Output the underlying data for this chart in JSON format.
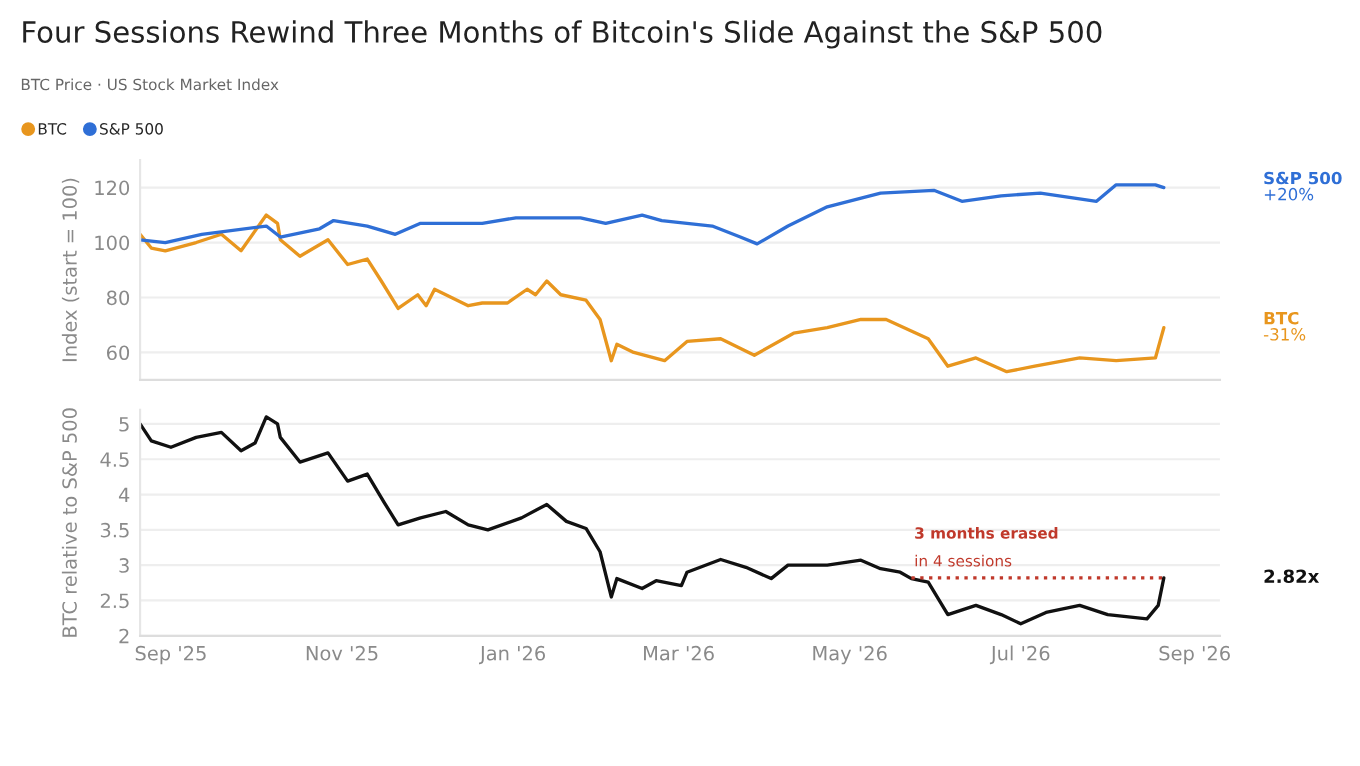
{
  "chart_data": [
    {
      "type": "line",
      "title": "Four Sessions Rewind Three Months of Bitcoin's Slide Against the S&P 500",
      "subtitle": "BTC Price · US Stock Market Index",
      "ylabel": "Index (start = 100)",
      "legend": "top left",
      "grid": "y",
      "tick_labels": "y",
      "xlim": [
        "2025-08-21",
        "2026-09-10"
      ],
      "ylim": [
        50,
        130
      ],
      "yticks": [
        60,
        80,
        100,
        120
      ],
      "series": [
        {
          "name": "BTC",
          "color": "#e8961e",
          "x": [
            "2025-08-21",
            "2025-08-25",
            "2025-08-30",
            "2025-09-10",
            "2025-09-19",
            "2025-09-26",
            "2025-10-05",
            "2025-10-09",
            "2025-10-10",
            "2025-10-17",
            "2025-10-27",
            "2025-11-03",
            "2025-11-10",
            "2025-11-15",
            "2025-11-21",
            "2025-11-28",
            "2025-12-01",
            "2025-12-04",
            "2025-12-16",
            "2025-12-21",
            "2025-12-30",
            "2026-01-06",
            "2026-01-09",
            "2026-01-13",
            "2026-01-18",
            "2026-01-27",
            "2026-02-01",
            "2026-02-05",
            "2026-02-07",
            "2026-02-13",
            "2026-02-24",
            "2026-03-04",
            "2026-03-16",
            "2026-03-28",
            "2026-04-11",
            "2026-04-23",
            "2026-05-05",
            "2026-05-14",
            "2026-05-29",
            "2026-06-05",
            "2026-06-15",
            "2026-06-26",
            "2026-07-06",
            "2026-07-22",
            "2026-08-04",
            "2026-08-18",
            "2026-08-21"
          ],
          "values": [
            103,
            98,
            97,
            100,
            103,
            97,
            110,
            107,
            101,
            95,
            101,
            92,
            94,
            86,
            76,
            81,
            77,
            83,
            77,
            78,
            78,
            83,
            81,
            86,
            81,
            79,
            72,
            57,
            63,
            60,
            57,
            64,
            65,
            59,
            67,
            69,
            72,
            72,
            65,
            55,
            58,
            53,
            55,
            58,
            57,
            58,
            69
          ]
        },
        {
          "name": "S&P 500",
          "color": "#2f6fd6",
          "x": [
            "2025-08-21",
            "2025-08-30",
            "2025-09-12",
            "2025-10-05",
            "2025-10-10",
            "2025-10-24",
            "2025-10-29",
            "2025-11-10",
            "2025-11-20",
            "2025-11-29",
            "2025-12-21",
            "2026-01-02",
            "2026-01-25",
            "2026-02-03",
            "2026-02-16",
            "2026-02-23",
            "2026-03-13",
            "2026-03-23",
            "2026-03-29",
            "2026-04-09",
            "2026-04-23",
            "2026-05-12",
            "2026-05-31",
            "2026-06-10",
            "2026-06-24",
            "2026-07-08",
            "2026-07-28",
            "2026-08-04",
            "2026-08-18",
            "2026-08-21"
          ],
          "values": [
            101,
            100,
            103,
            106,
            102,
            105,
            108,
            106,
            103,
            107,
            107,
            109,
            109,
            107,
            110,
            108,
            106,
            102,
            99.5,
            106,
            113,
            118,
            119,
            115,
            117,
            118,
            115,
            121,
            121,
            120
          ]
        }
      ],
      "annotations": [
        "-31%",
        "+20%"
      ]
    },
    {
      "type": "line",
      "ylabel": "BTC relative to S&P 500",
      "grid": "y",
      "xlim": [
        "2025-08-21",
        "2026-09-10"
      ],
      "xticks": [
        {
          "value": "2025-09-01",
          "label": "Sep '25"
        },
        {
          "value": "2025-11-01",
          "label": "Nov '25"
        },
        {
          "value": "2026-01-01",
          "label": "Jan '26"
        },
        {
          "value": "2026-03-01",
          "label": "Mar '26"
        },
        {
          "value": "2026-05-01",
          "label": "May '26"
        },
        {
          "value": "2026-07-01",
          "label": "Jul '26"
        },
        {
          "value": "2026-09-01",
          "label": "Sep '26"
        }
      ],
      "ylim": [
        2,
        5.2
      ],
      "yticks": [
        2,
        2.5,
        3,
        3.5,
        4,
        4.5,
        5
      ],
      "series": [
        {
          "color": "#111111",
          "x": [
            "2025-08-21",
            "2025-08-25",
            "2025-09-01",
            "2025-09-10",
            "2025-09-19",
            "2025-09-26",
            "2025-10-01",
            "2025-10-05",
            "2025-10-09",
            "2025-10-10",
            "2025-10-17",
            "2025-10-27",
            "2025-11-03",
            "2025-11-10",
            "2025-11-16",
            "2025-11-21",
            "2025-11-29",
            "2025-12-08",
            "2025-12-16",
            "2025-12-23",
            "2026-01-04",
            "2026-01-13",
            "2026-01-20",
            "2026-01-27",
            "2026-02-01",
            "2026-02-05",
            "2026-02-07",
            "2026-02-16",
            "2026-02-21",
            "2026-03-02",
            "2026-03-04",
            "2026-03-16",
            "2026-03-25",
            "2026-04-03",
            "2026-04-09",
            "2026-04-23",
            "2026-05-05",
            "2026-05-12",
            "2026-05-19",
            "2026-05-23",
            "2026-05-29",
            "2026-06-05",
            "2026-06-15",
            "2026-06-24",
            "2026-07-01",
            "2026-07-10",
            "2026-07-22",
            "2026-08-01",
            "2026-08-15",
            "2026-08-19",
            "2026-08-21"
          ],
          "values": [
            5.0,
            4.76,
            4.67,
            4.81,
            4.88,
            4.62,
            4.73,
            5.1,
            5.0,
            4.81,
            4.46,
            4.59,
            4.19,
            4.29,
            3.89,
            3.57,
            3.67,
            3.76,
            3.57,
            3.5,
            3.67,
            3.86,
            3.62,
            3.52,
            3.19,
            2.55,
            2.81,
            2.67,
            2.78,
            2.71,
            2.9,
            3.08,
            2.97,
            2.81,
            3.0,
            3.0,
            3.07,
            2.95,
            2.9,
            2.81,
            2.76,
            2.3,
            2.43,
            2.3,
            2.17,
            2.33,
            2.43,
            2.3,
            2.24,
            2.43,
            2.82
          ]
        },
        {
          "color": "#c0392b",
          "line_style": "dotted",
          "x": [
            "2026-05-23",
            "2026-08-21"
          ],
          "values": [
            2.82,
            2.82
          ]
        }
      ],
      "annotations": [
        "2.82x",
        {
          "text": "3 months erased",
          "x": "2026-05-23",
          "y": 2.82
        },
        {
          "text": "in 4 sessions",
          "x": "2026-05-23",
          "y": 2.82
        }
      ]
    }
  ]
}
